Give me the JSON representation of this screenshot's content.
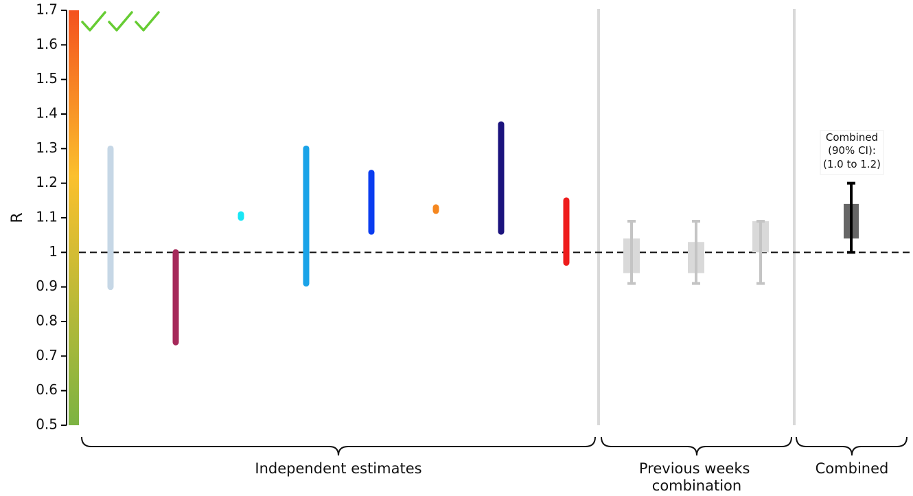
{
  "chart_data": {
    "type": "range",
    "ylabel": "R",
    "ylim": [
      0.5,
      1.7
    ],
    "yticks": [
      {
        "value": 0.5,
        "label": "0.5"
      },
      {
        "value": 0.6,
        "label": "0.6"
      },
      {
        "value": 0.7,
        "label": "0.7"
      },
      {
        "value": 0.8,
        "label": "0.8"
      },
      {
        "value": 0.9,
        "label": "0.9"
      },
      {
        "value": 1.0,
        "label": "1"
      },
      {
        "value": 1.1,
        "label": "1.1"
      },
      {
        "value": 1.2,
        "label": "1.2"
      },
      {
        "value": 1.3,
        "label": "1.3"
      },
      {
        "value": 1.4,
        "label": "1.4"
      },
      {
        "value": 1.5,
        "label": "1.5"
      },
      {
        "value": 1.6,
        "label": "1.6"
      },
      {
        "value": 1.7,
        "label": "1.7"
      }
    ],
    "reference_line": 1.0,
    "color_scale": {
      "low": "#7cb342",
      "mid": "#fbc02d",
      "high": "#f4511e"
    },
    "checkmarks": 3,
    "checkmark_color": "#66cc33",
    "groups": [
      "Independent estimates",
      "Previous weeks combination",
      "Combined"
    ],
    "independent_estimates": [
      {
        "low": 0.9,
        "high": 1.3,
        "color": "#c6d7e6"
      },
      {
        "low": 0.74,
        "high": 1.0,
        "color": "#a6295a"
      },
      {
        "low": 1.1,
        "high": 1.11,
        "color": "#19e6f5"
      },
      {
        "low": 0.91,
        "high": 1.3,
        "color": "#1aa3e8"
      },
      {
        "low": 1.06,
        "high": 1.23,
        "color": "#0a3cf0"
      },
      {
        "low": 1.12,
        "high": 1.13,
        "color": "#f5871f"
      },
      {
        "low": 1.06,
        "high": 1.37,
        "color": "#1b137d"
      },
      {
        "low": 0.97,
        "high": 1.15,
        "color": "#ee1c1c"
      }
    ],
    "previous_weeks": [
      {
        "low": 0.91,
        "high": 1.09,
        "box_low": 0.94,
        "box_high": 1.04
      },
      {
        "low": 0.91,
        "high": 1.09,
        "box_low": 0.94,
        "box_high": 1.03
      },
      {
        "low": 0.91,
        "high": 1.09,
        "box_low": 1.0,
        "box_high": 1.09
      }
    ],
    "combined": {
      "low": 1.0,
      "high": 1.2,
      "box_low": 1.04,
      "box_high": 1.14
    },
    "annotation": [
      "Combined",
      "(90% CI):",
      "(1.0 to 1.2)"
    ]
  }
}
